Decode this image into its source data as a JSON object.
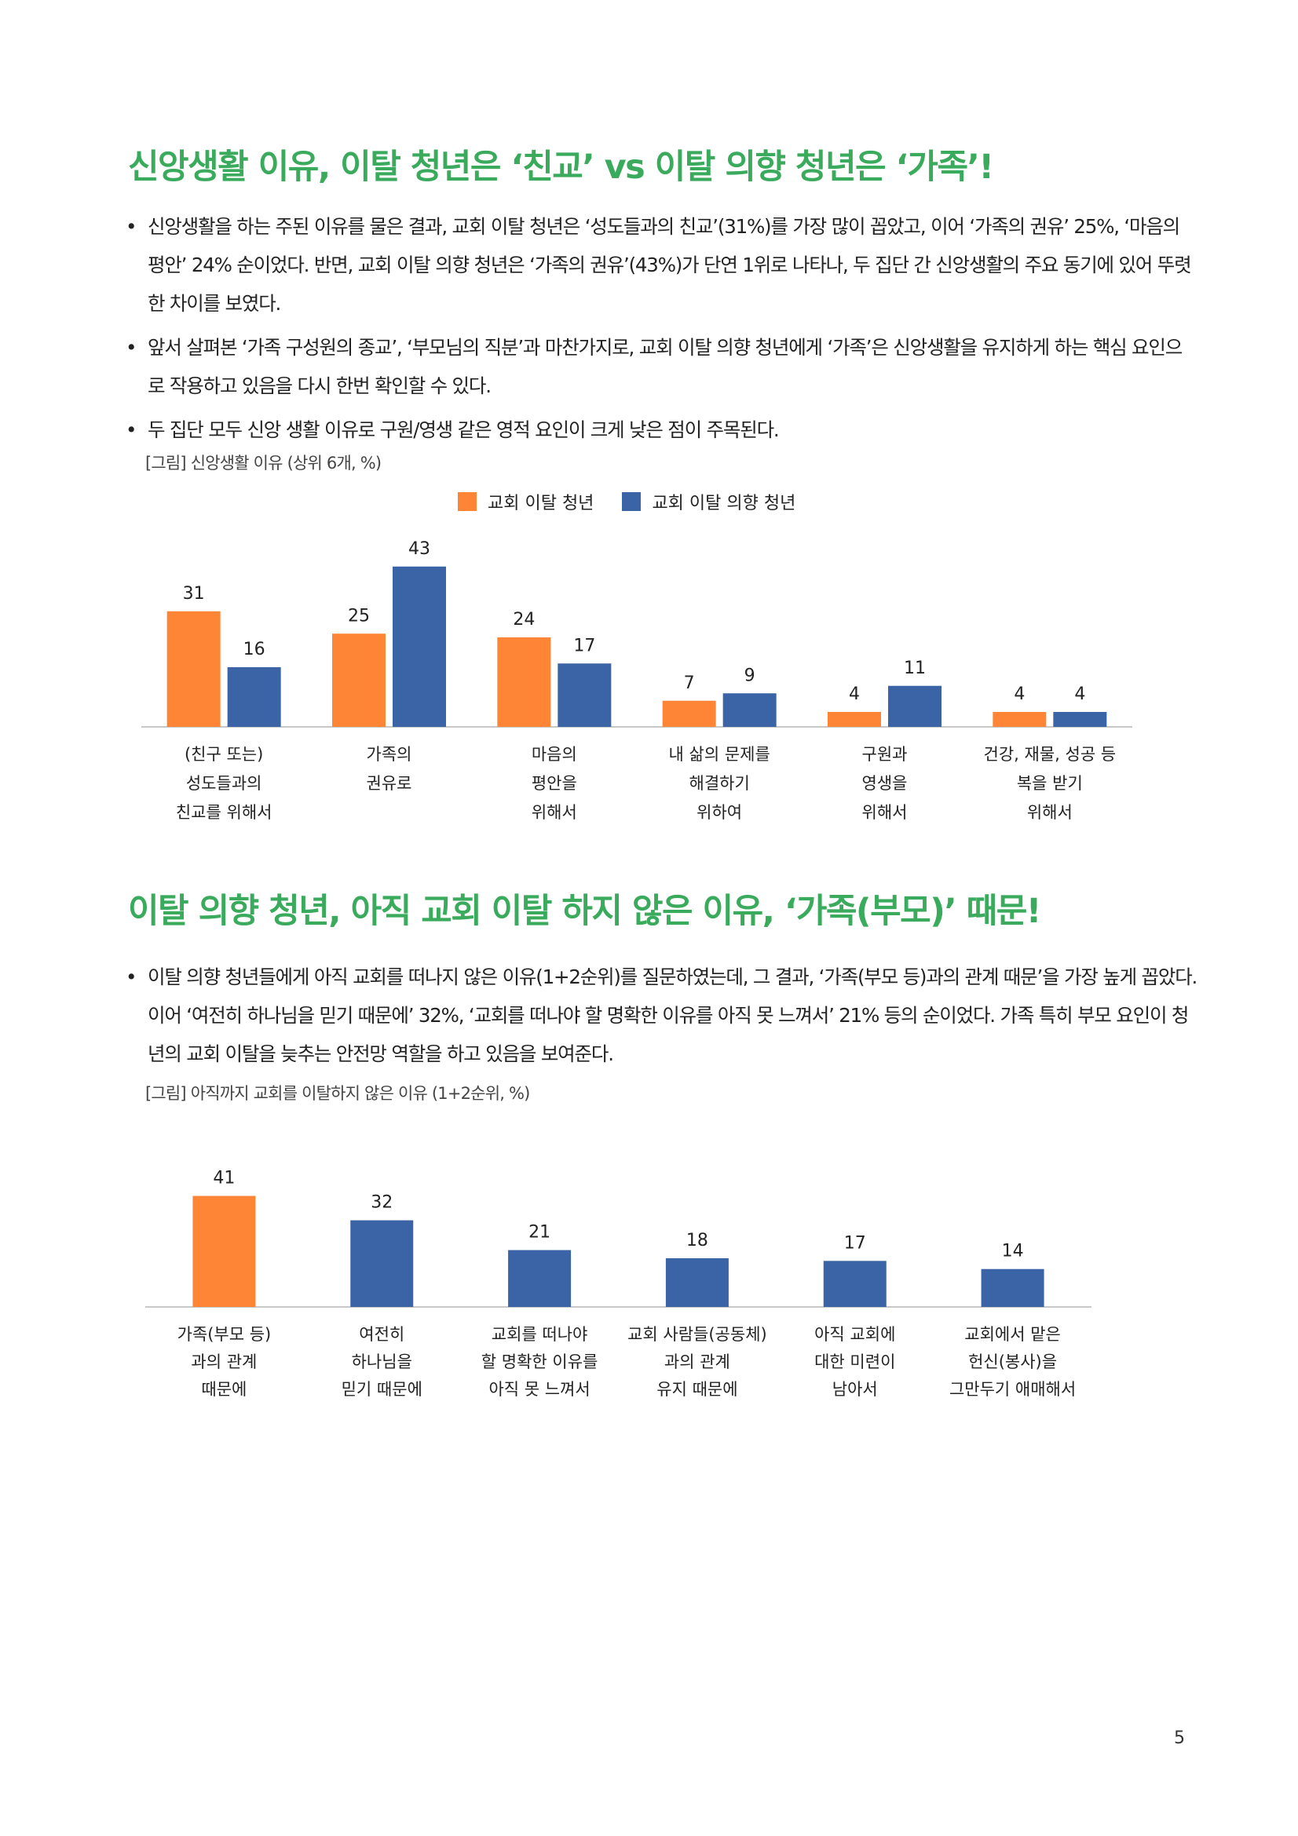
{
  "section1": {
    "heading": "신앙생활 이유, 이탈 청년은 ‘친교’ vs 이탈 의향 청년은 ‘가족’!",
    "bullets": [
      "신앙생활을 하는 주된 이유를 물은 결과, 교회 이탈 청년은 ‘성도들과의 친교’(31%)를 가장 많이 꼽았고, 이어 ‘가족의 권유’ 25%, ‘마음의 평안’ 24% 순이었다. 반면, 교회 이탈 의향 청년은 ‘가족의 권유’(43%)가 단연 1위로 나타나, 두 집단 간 신앙생활의 주요 동기에 있어 뚜렷한 차이를 보였다.",
      "앞서 살펴본 ‘가족 구성원의 종교’, ‘부모님의 직분’과 마찬가지로, 교회 이탈 의향 청년에게 ‘가족’은 신앙생활을 유지하게 하는 핵심 요인으로 작용하고 있음을 다시 한번 확인할 수 있다.",
      "두 집단 모두 신앙 생활 이유로 구원/영생 같은 영적 요인이 크게 낮은 점이 주목된다."
    ],
    "figure_caption": "[그림] 신앙생활 이유 (상위 6개, %)"
  },
  "section2": {
    "heading": "이탈 의향 청년, 아직 교회 이탈 하지 않은 이유, ‘가족(부모)’ 때문!",
    "bullets": [
      "이탈 의향 청년들에게 아직 교회를 떠나지 않은 이유(1+2순위)를 질문하였는데, 그 결과, ‘가족(부모 등)과의 관계 때문’을 가장 높게 꼽았다. 이어 ‘여전히 하나님을 믿기 때문에’ 32%, ‘교회를 떠나야 할 명확한 이유를 아직 못 느껴서’ 21% 등의 순이었다. 가족 특히 부모 요인이 청년의 교회 이탈을 늦추는 안전망 역할을 하고 있음을 보여준다."
    ],
    "figure_caption": "[그림] 아직까지 교회를 이탈하지 않은 이유 (1+2순위, %)"
  },
  "page_number": "5",
  "colors": {
    "heading": "#3aaa5c",
    "orange": "#fd8535",
    "blue": "#3a64a5",
    "axis": "#c8c8c8"
  },
  "chart_data": [
    {
      "type": "bar",
      "categories": [
        [
          "(친구 또는)",
          "성도들과의",
          "친교를 위해서"
        ],
        [
          "가족의",
          "권유로"
        ],
        [
          "마음의",
          "평안을",
          "위해서"
        ],
        [
          "내 삶의 문제를",
          "해결하기",
          "위하여"
        ],
        [
          "구원과",
          "영생을",
          "위해서"
        ],
        [
          "건강, 재물, 성공 등",
          "복을 받기",
          "위해서"
        ]
      ],
      "series": [
        {
          "name": "교회 이탈 청년",
          "color": "#fd8535",
          "values": [
            31,
            25,
            24,
            7,
            4,
            4
          ]
        },
        {
          "name": "교회 이탈 의향 청년",
          "color": "#3a64a5",
          "values": [
            16,
            43,
            17,
            9,
            11,
            4
          ]
        }
      ],
      "legend": "top-center",
      "ylim": [
        0,
        45
      ],
      "grid": false
    },
    {
      "type": "bar",
      "categories": [
        [
          "가족(부모 등)",
          "과의 관계",
          "때문에"
        ],
        [
          "여전히",
          "하나님을",
          "믿기 때문에"
        ],
        [
          "교회를 떠나야",
          "할 명확한 이유를",
          "아직 못 느껴서"
        ],
        [
          "교회 사람들(공동체)",
          "과의 관계",
          "유지 때문에"
        ],
        [
          "아직 교회에",
          "대한 미련이",
          "남아서"
        ],
        [
          "교회에서 맡은",
          "헌신(봉사)을",
          "그만두기 애매해서"
        ]
      ],
      "values": [
        41,
        32,
        21,
        18,
        17,
        14
      ],
      "highlight_color": "#fd8535",
      "color": "#3a64a5",
      "ylim": [
        0,
        45
      ],
      "grid": false
    }
  ]
}
